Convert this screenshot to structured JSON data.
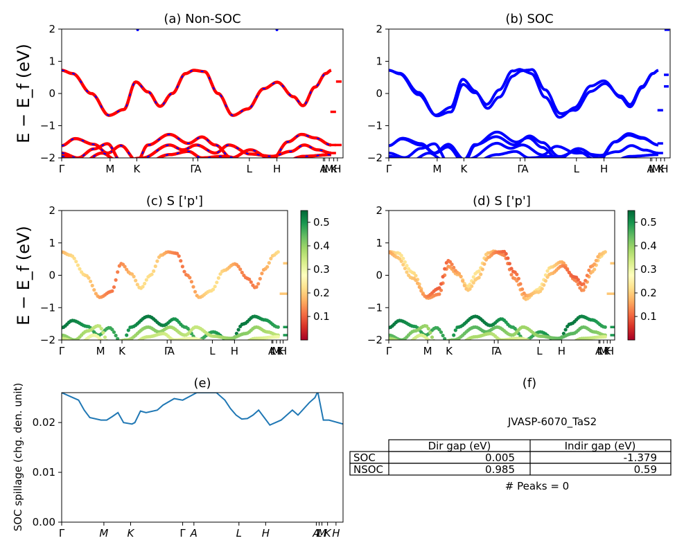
{
  "colors": {
    "nsoc_band": "#ff0000",
    "nsoc_dash": "#0000ff",
    "soc_band": "#0000ff",
    "spillage_line": "#1f77b4",
    "colormap": [
      "#a50026",
      "#d73027",
      "#f46d43",
      "#fdae61",
      "#fee08b",
      "#ffffbf",
      "#d9ef8b",
      "#a6d96a",
      "#66bd63",
      "#1a9850",
      "#006837"
    ]
  },
  "y_axis_label": "E − E_f (eV)",
  "k_ticks": [
    "Γ",
    "M",
    "K",
    "Γ",
    "A",
    "L",
    "H",
    "A",
    "L",
    "M",
    "K",
    "H"
  ],
  "panels": {
    "a": {
      "title": "(a) Non-SOC"
    },
    "b": {
      "title": "(b) SOC"
    },
    "c": {
      "title": "(c)  S ['p']"
    },
    "d": {
      "title": "(d) S ['p']"
    },
    "e": {
      "title": "(e)",
      "ylabel": "SOC spillage (chg. den. unit)"
    },
    "f": {
      "title": "(f)",
      "material": "JVASP-6070_TaS2",
      "headers": [
        "Dir gap (eV)",
        "Indir gap (eV)"
      ],
      "rows": [
        {
          "label": "SOC",
          "dir": "0.005",
          "indir": "-1.379"
        },
        {
          "label": "NSOC",
          "dir": "0.985",
          "indir": "0.59"
        }
      ],
      "peaks": "# Peaks = 0"
    }
  },
  "chart_data": [
    {
      "type": "line",
      "panel": "a",
      "title": "(a) Non-SOC",
      "ylabel": "E − E_f (eV)",
      "ylim": [
        -2,
        2
      ],
      "yticks": [
        "2",
        "1",
        "0",
        "−1",
        "−2"
      ],
      "x_ticks": [
        "Γ",
        "M",
        "K",
        "Γ",
        "A",
        "L",
        "H",
        "A",
        "L",
        "M",
        "K",
        "H"
      ],
      "series": [
        {
          "name": "",
          "x": [
            0,
            0.05,
            0.1,
            0.15,
            0.2,
            0.25,
            0.28,
            0.31,
            0.35,
            0.4,
            0.45,
            0.5,
            0.55,
            0.6,
            0.65,
            0.72,
            0.75,
            0.8,
            0.85,
            0.9,
            0.95,
            1.0
          ],
          "y": [
            0.72,
            0.55,
            0.0,
            -0.55,
            -0.68,
            -0.52,
            -0.05,
            0.35,
            0.05,
            -0.38,
            0.15,
            0.68,
            0.72,
            0.68,
            0.0,
            -0.68,
            -0.55,
            -0.1,
            0.35,
            -0.1,
            -0.38,
            0.72
          ]
        }
      ]
    },
    {
      "type": "line",
      "panel": "b",
      "title": "(b) SOC",
      "ylabel": "",
      "ylim": [
        -2,
        2
      ],
      "yticks": [
        "2",
        "1",
        "0",
        "−1",
        "−2"
      ],
      "x_ticks": [
        "Γ",
        "M",
        "K",
        "Γ",
        "A",
        "L",
        "H",
        "A",
        "L",
        "M",
        "K",
        "H"
      ]
    },
    {
      "type": "scatter",
      "panel": "c",
      "title": "(c)  S ['p']",
      "ylabel": "E − E_f (eV)",
      "ylim": [
        -2,
        2
      ],
      "yticks": [
        "2",
        "1",
        "0",
        "−1",
        "−2"
      ],
      "colorbar_ticks": [
        "0.5",
        "0.4",
        "0.3",
        "0.2",
        "0.1"
      ],
      "colorbar_range": [
        0.0,
        0.55
      ],
      "x_ticks": [
        "Γ",
        "M",
        "K",
        "Γ",
        "A",
        "L",
        "H",
        "A",
        "L",
        "M",
        "K",
        "H"
      ]
    },
    {
      "type": "scatter",
      "panel": "d",
      "title": "(d) S ['p']",
      "ylabel": "",
      "ylim": [
        -2,
        2
      ],
      "yticks": [
        "2",
        "1",
        "0",
        "−1",
        "−2"
      ],
      "colorbar_ticks": [
        "0.5",
        "0.4",
        "0.3",
        "0.2",
        "0.1"
      ],
      "colorbar_range": [
        0.0,
        0.55
      ],
      "x_ticks": [
        "Γ",
        "M",
        "K",
        "Γ",
        "A",
        "L",
        "H",
        "A",
        "L",
        "M",
        "K",
        "H"
      ]
    },
    {
      "type": "line",
      "panel": "e",
      "title": "(e)",
      "ylabel": "SOC spillage (chg. den. unit)",
      "ylim": [
        0.0,
        0.026
      ],
      "yticks": [
        "0.00",
        "0.01",
        "0.02"
      ],
      "x_ticks": [
        "Γ",
        "M",
        "K",
        "Γ",
        "A",
        "L",
        "H",
        "A",
        "L",
        "M",
        "K",
        "H"
      ],
      "series": [
        {
          "name": "",
          "x": [
            0,
            0.04,
            0.06,
            0.08,
            0.1,
            0.14,
            0.16,
            0.18,
            0.2,
            0.22,
            0.25,
            0.26,
            0.28,
            0.3,
            0.34,
            0.36,
            0.4,
            0.43,
            0.48,
            0.5,
            0.55,
            0.58,
            0.6,
            0.62,
            0.64,
            0.66,
            0.68,
            0.7,
            0.74,
            0.78,
            0.82,
            0.84,
            0.88,
            0.9,
            0.91,
            0.93,
            0.95,
            1.0
          ],
          "y": [
            0.026,
            0.025,
            0.0245,
            0.0225,
            0.021,
            0.0205,
            0.0205,
            0.0212,
            0.022,
            0.02,
            0.0197,
            0.02,
            0.0223,
            0.022,
            0.0225,
            0.0235,
            0.0248,
            0.0245,
            0.026,
            0.026,
            0.026,
            0.0245,
            0.0228,
            0.0215,
            0.0207,
            0.0208,
            0.0215,
            0.0225,
            0.0195,
            0.0205,
            0.0225,
            0.0215,
            0.024,
            0.025,
            0.0262,
            0.0205,
            0.0205,
            0.0197
          ]
        }
      ]
    }
  ]
}
